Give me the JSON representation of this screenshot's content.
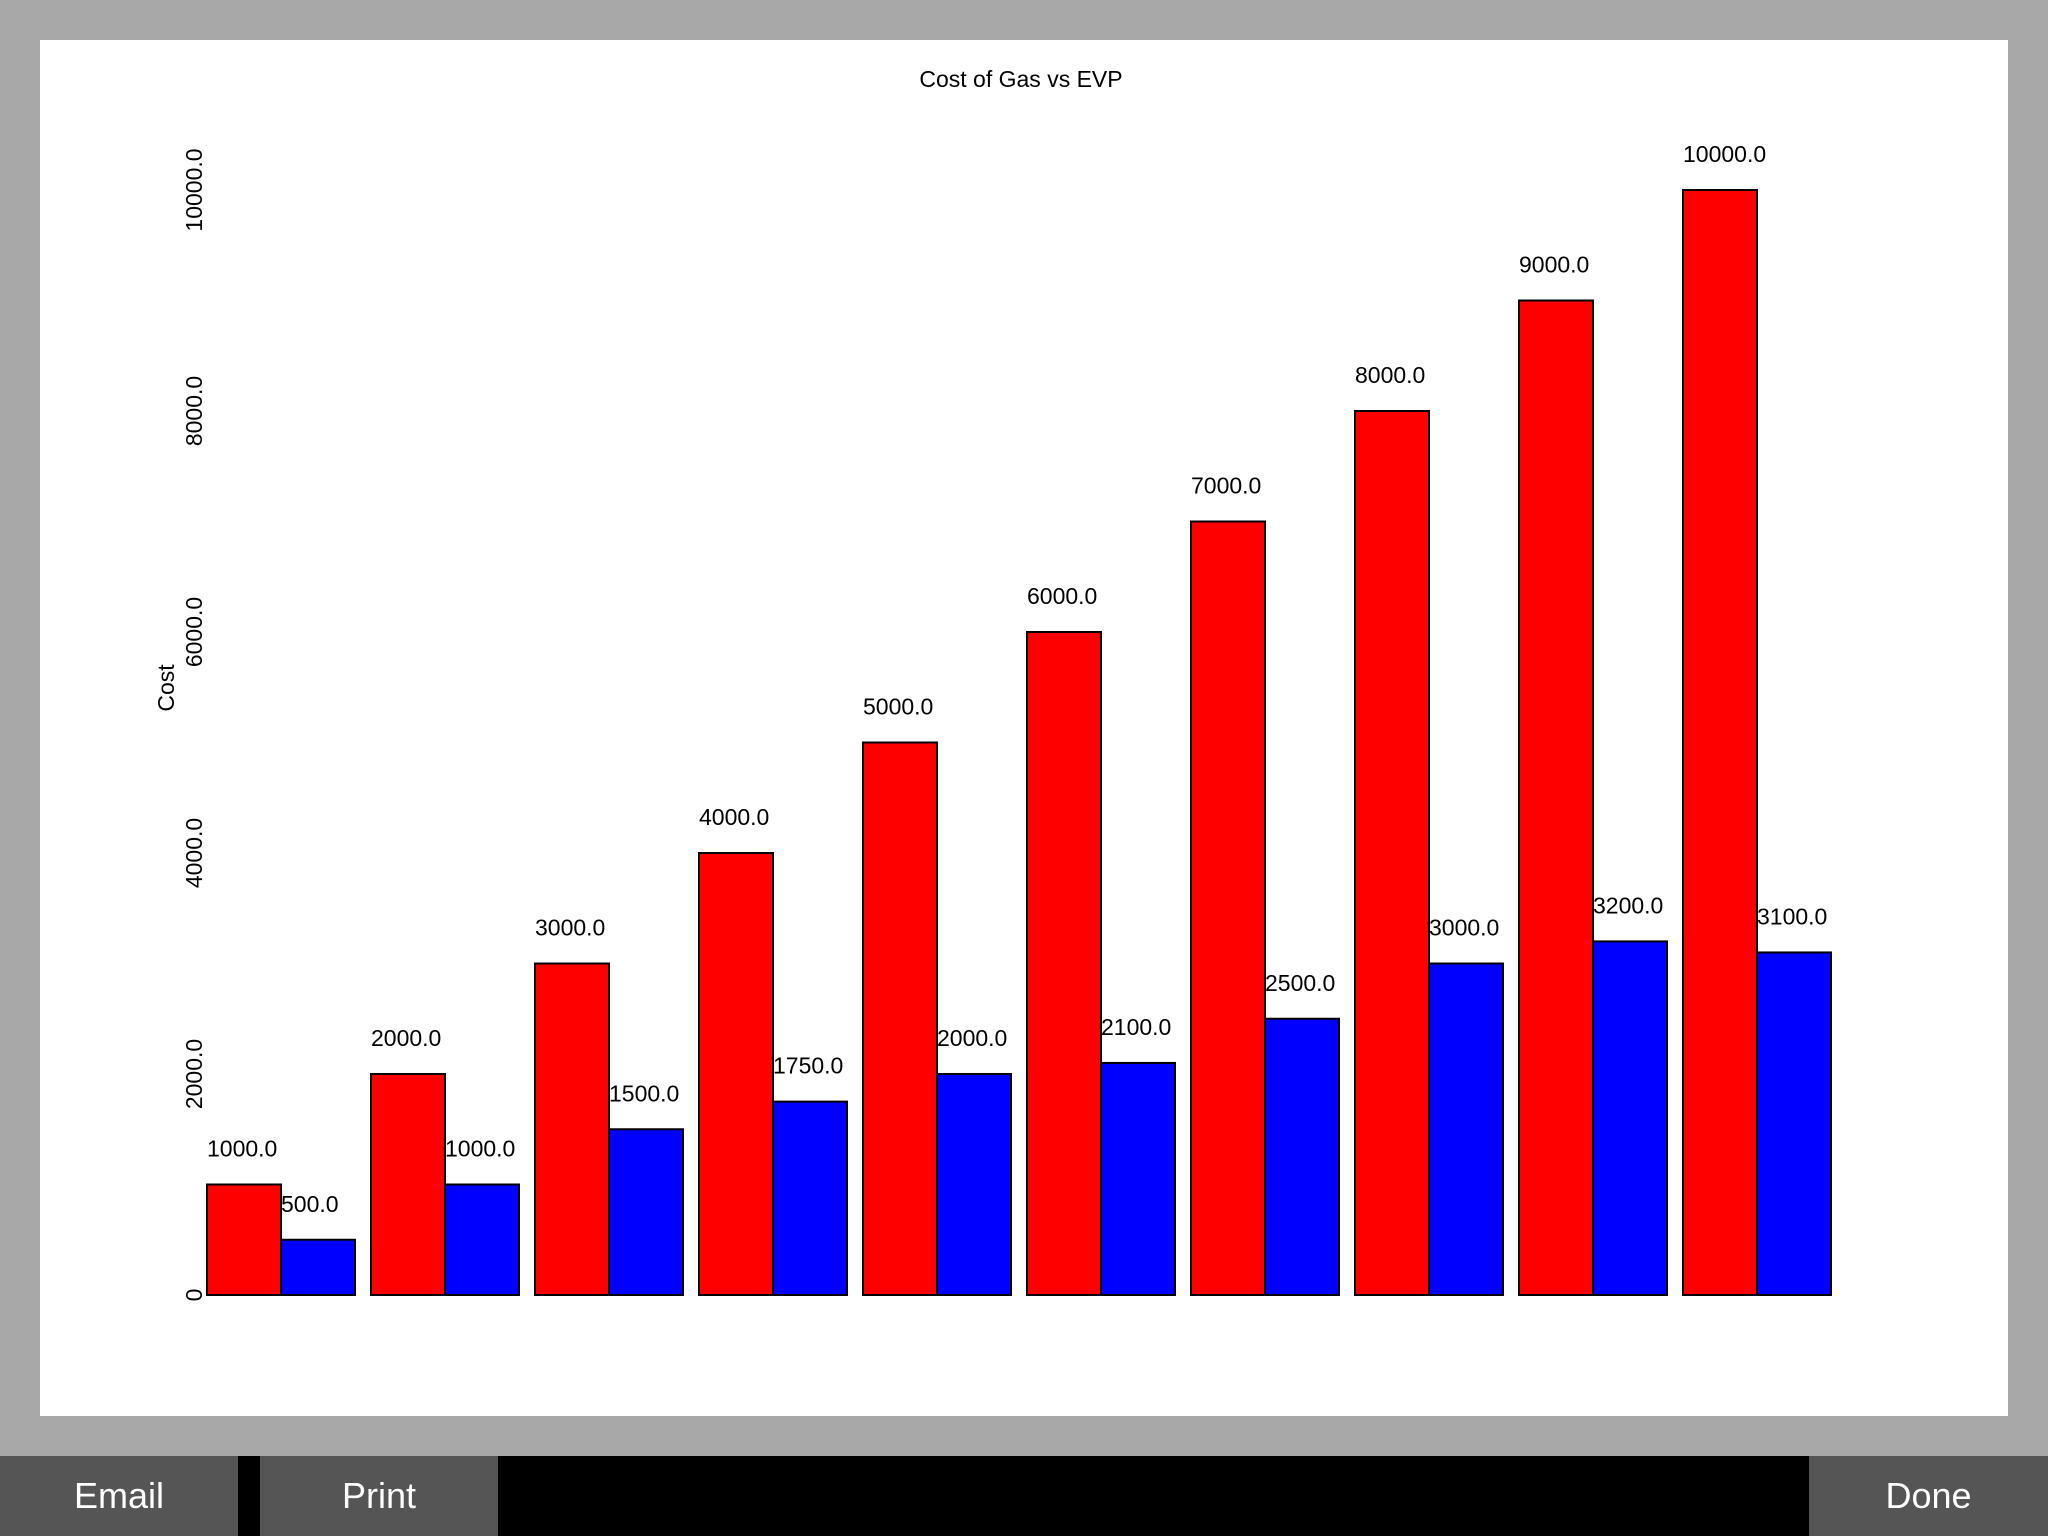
{
  "toolbar": {
    "email_label": "Email",
    "print_label": "Print",
    "done_label": "Done"
  },
  "colors": {
    "series_gas": "#ff0000",
    "series_evp": "#0000ff",
    "background": "#a8a8a8",
    "toolbar_button": "#555555"
  },
  "chart_data": {
    "type": "bar",
    "title": "Cost of Gas vs EVP",
    "xlabel": "",
    "ylabel": "Cost",
    "ylim": [
      0,
      10000
    ],
    "y_ticks": [
      "0",
      "2000.0",
      "4000.0",
      "6000.0",
      "8000.0",
      "10000.0"
    ],
    "y_tick_values": [
      0,
      2000,
      4000,
      6000,
      8000,
      10000
    ],
    "grid": false,
    "series": [
      {
        "color": "#ff0000",
        "values": [
          1000,
          2000,
          3000,
          4000,
          5000,
          6000,
          7000,
          8000,
          9000,
          10000
        ],
        "labels": [
          "1000.0",
          "2000.0",
          "3000.0",
          "4000.0",
          "5000.0",
          "6000.0",
          "7000.0",
          "8000.0",
          "9000.0",
          "10000.0"
        ]
      },
      {
        "color": "#0000ff",
        "values": [
          500,
          1000,
          1500,
          1750,
          2000,
          2100,
          2500,
          3000,
          3200,
          3100
        ],
        "labels": [
          "500.0",
          "1000.0",
          "1500.0",
          "1750.0",
          "2000.0",
          "2100.0",
          "2500.0",
          "3000.0",
          "3200.0",
          "3100.0"
        ]
      }
    ]
  }
}
